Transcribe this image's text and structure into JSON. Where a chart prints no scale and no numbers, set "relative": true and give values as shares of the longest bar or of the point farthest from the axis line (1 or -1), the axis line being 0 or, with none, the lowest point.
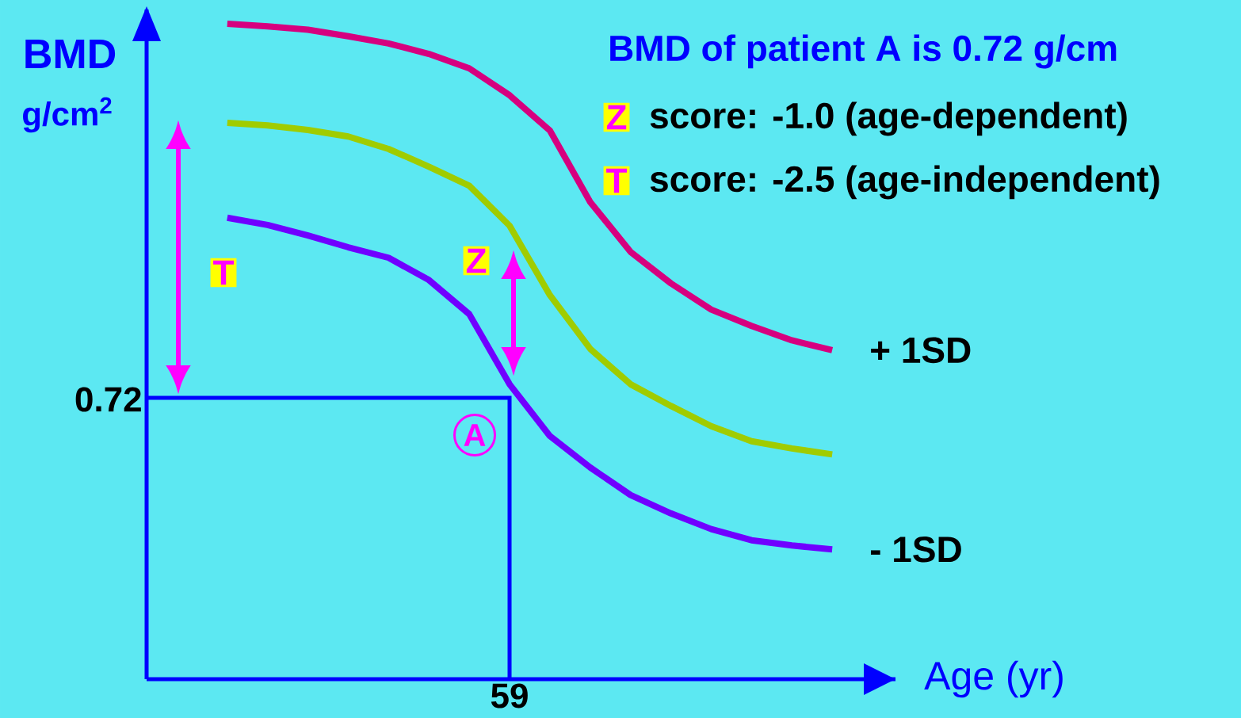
{
  "chart_data": {
    "type": "line",
    "relative": true,
    "title": "BMD of patient A is 0.72 g/cm",
    "ylabel": "BMD",
    "xlabel": "Age (yr)",
    "categories": [
      null,
      null,
      null,
      null,
      null,
      null,
      null,
      null,
      null,
      null,
      null,
      null,
      null,
      null,
      null,
      null,
      null,
      null,
      null
    ],
    "series": [
      {
        "name": "+ 1SD",
        "color": "#d6007f",
        "values": [
          null,
          null,
          1.0,
          0.996,
          0.991,
          0.981,
          0.97,
          0.954,
          0.932,
          0.891,
          0.837,
          0.728,
          0.652,
          0.604,
          0.564,
          0.539,
          0.517,
          0.502,
          null
        ]
      },
      {
        "color": "#a0cc00",
        "values": [
          null,
          null,
          0.849,
          0.845,
          0.838,
          0.828,
          0.809,
          0.782,
          0.753,
          0.692,
          0.586,
          0.504,
          0.45,
          0.417,
          0.386,
          0.363,
          0.352,
          0.343,
          null
        ]
      },
      {
        "name": "- 1SD",
        "color": "#7000ff",
        "values": [
          null,
          null,
          0.704,
          0.693,
          0.677,
          0.659,
          0.643,
          0.609,
          0.557,
          0.45,
          0.371,
          0.323,
          0.281,
          0.253,
          0.229,
          0.212,
          0.204,
          0.198,
          null
        ]
      }
    ],
    "annotations": [
      "g/cm$^{2}$",
      "Z",
      "score: -1.0 (age-dependent)",
      "T",
      "score: -2.5 (age-independent)",
      "T",
      "Z",
      "A",
      "0.72",
      "59"
    ],
    "line_style": "solid",
    "marker": "none"
  }
}
